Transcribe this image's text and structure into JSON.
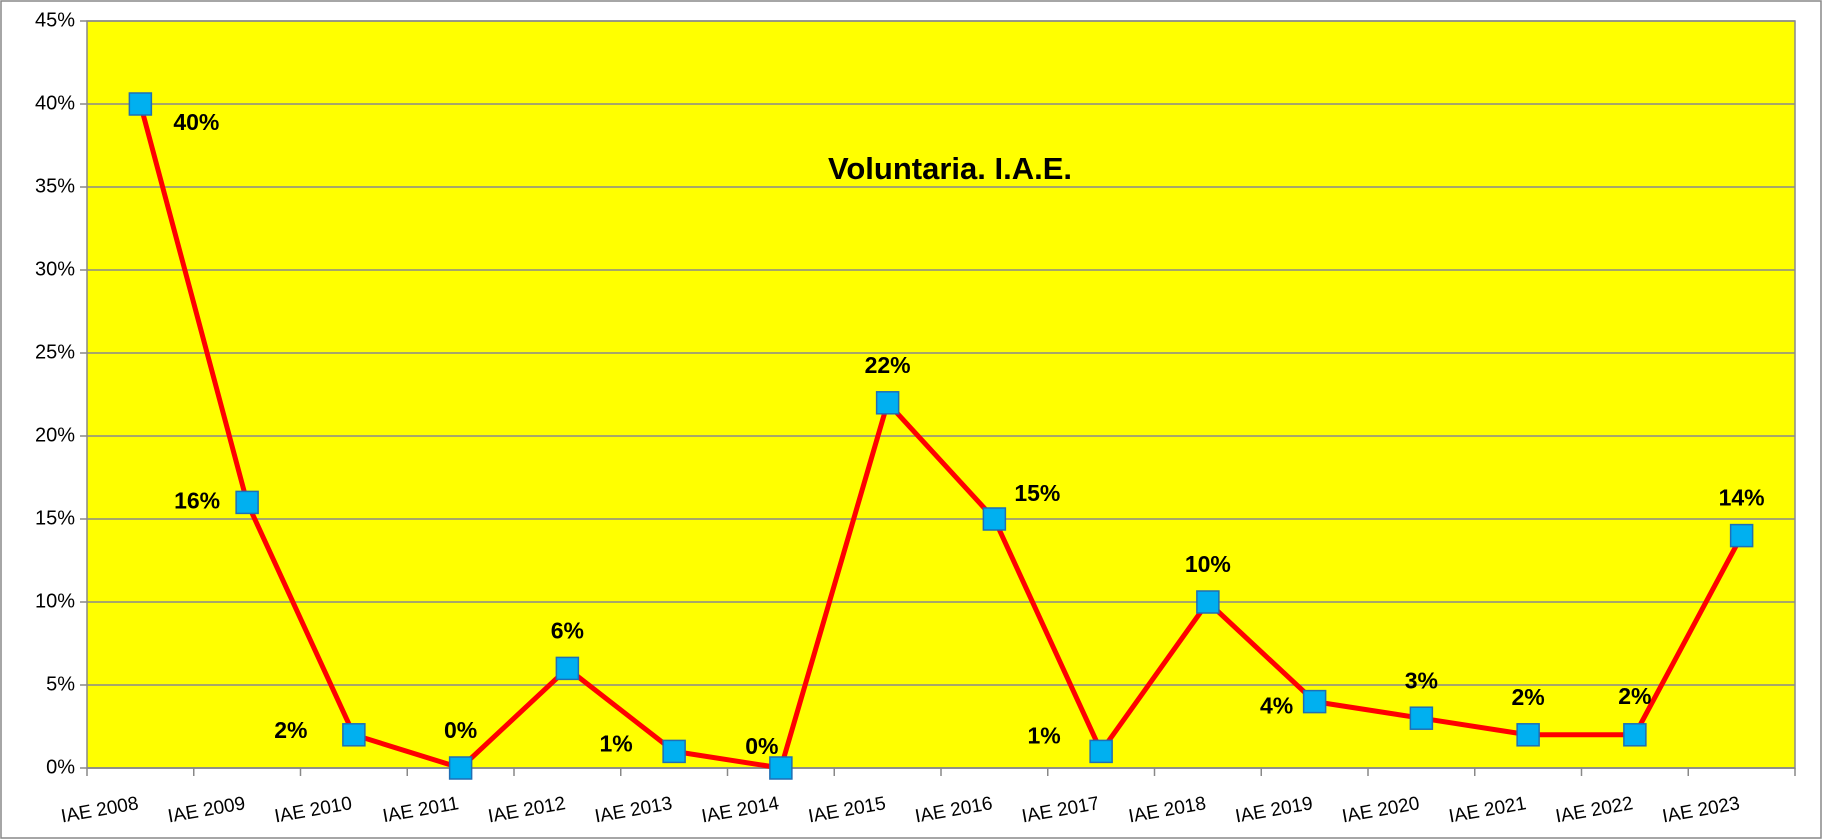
{
  "chart_data": {
    "type": "line",
    "title": "Voluntaria. I.A.E.",
    "categories": [
      "IAE 2008",
      "IAE 2009",
      "IAE 2010",
      "IAE 2011",
      "IAE 2012",
      "IAE 2013",
      "IAE 2014",
      "IAE 2015",
      "IAE 2016",
      "IAE 2017",
      "IAE 2018",
      "IAE 2019",
      "IAE 2020",
      "IAE 2021",
      "IAE 2022",
      "IAE 2023"
    ],
    "series": [
      {
        "name": "Voluntaria. I.A.E.",
        "color": "#ff0000",
        "marker_color": "#00b0f0",
        "values": [
          40,
          16,
          2,
          0,
          6,
          1,
          0,
          22,
          15,
          1,
          10,
          4,
          3,
          2,
          2,
          14
        ],
        "value_labels": [
          "40%",
          "16%",
          "2%",
          "0%",
          "6%",
          "1%",
          "0%",
          "22%",
          "15%",
          "1%",
          "10%",
          "4%",
          "3%",
          "2%",
          "2%",
          "14%"
        ]
      }
    ],
    "ylim": [
      0,
      45
    ],
    "yticks": [
      {
        "value": 0,
        "label": "0%"
      },
      {
        "value": 5,
        "label": "5%"
      },
      {
        "value": 10,
        "label": "10%"
      },
      {
        "value": 15,
        "label": "15%"
      },
      {
        "value": 20,
        "label": "20%"
      },
      {
        "value": 25,
        "label": "25%"
      },
      {
        "value": 30,
        "label": "30%"
      },
      {
        "value": 35,
        "label": "35%"
      },
      {
        "value": 40,
        "label": "40%"
      },
      {
        "value": 45,
        "label": "45%"
      }
    ],
    "grid": true,
    "plot_background": "#ffff00"
  }
}
